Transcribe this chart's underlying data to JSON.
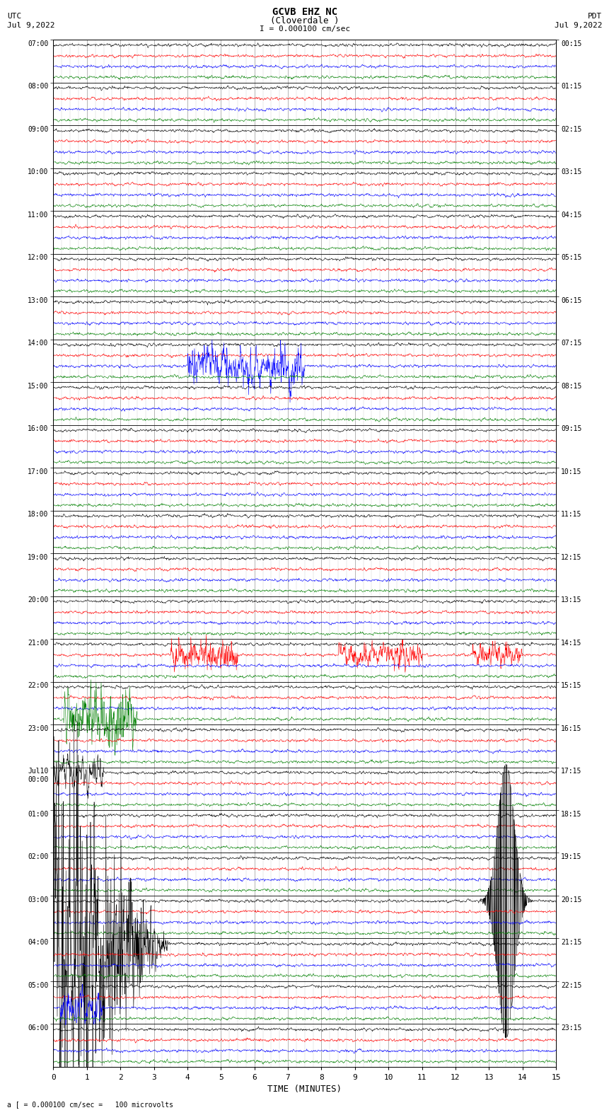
{
  "title_line1": "GCVB EHZ NC",
  "title_line2": "(Cloverdale )",
  "scale_label": "I = 0.000100 cm/sec",
  "left_label": "UTC\nJul 9,2022",
  "right_label": "PDT\nJul 9,2022",
  "bottom_label": "a [ = 0.000100 cm/sec =   100 microvolts",
  "xlabel": "TIME (MINUTES)",
  "left_times": [
    "07:00",
    "08:00",
    "09:00",
    "10:00",
    "11:00",
    "12:00",
    "13:00",
    "14:00",
    "15:00",
    "16:00",
    "17:00",
    "18:00",
    "19:00",
    "20:00",
    "21:00",
    "22:00",
    "23:00",
    "Jul10\n00:00",
    "01:00",
    "02:00",
    "03:00",
    "04:00",
    "05:00",
    "06:00"
  ],
  "right_times": [
    "00:15",
    "01:15",
    "02:15",
    "03:15",
    "04:15",
    "05:15",
    "06:15",
    "07:15",
    "08:15",
    "09:15",
    "10:15",
    "11:15",
    "12:15",
    "13:15",
    "14:15",
    "15:15",
    "16:15",
    "17:15",
    "18:15",
    "19:15",
    "20:15",
    "21:15",
    "22:15",
    "23:15"
  ],
  "n_rows": 24,
  "n_cols": 4,
  "colors": [
    "black",
    "red",
    "blue",
    "green"
  ],
  "bg_color": "white",
  "figsize": [
    8.5,
    16.13
  ],
  "dpi": 100
}
